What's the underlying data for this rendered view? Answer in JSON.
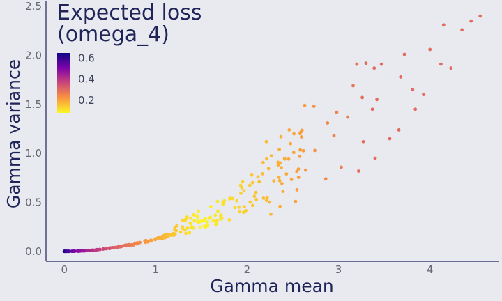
{
  "chart_data": {
    "type": "scatter",
    "title_lines": [
      "Expected loss",
      "(omega_4)"
    ],
    "xlabel": "Gamma mean",
    "ylabel": "Gamma variance",
    "xlim": [
      -0.2,
      4.75
    ],
    "ylim": [
      -0.1,
      2.55
    ],
    "x_ticks": [
      0,
      1,
      2,
      3,
      4
    ],
    "y_ticks": [
      0.0,
      0.5,
      1.0,
      1.5,
      2.0,
      2.5
    ],
    "x_tick_labels": [
      "0",
      "1",
      "2",
      "3",
      "4"
    ],
    "y_tick_labels": [
      "0.0",
      "0.5",
      "1.0",
      "1.5",
      "2.0",
      "2.5"
    ],
    "grid": false,
    "color_scale": {
      "name": "plasma",
      "min": 0.08,
      "max": 0.65,
      "legend_ticks": [
        0.6,
        0.4,
        0.2
      ],
      "legend_tick_labels": [
        "0.6",
        "0.4",
        "0.2"
      ],
      "legend_placement": "top-left",
      "colors": [
        "#fcf524",
        "#f89540",
        "#cc4778",
        "#7e03a8",
        "#0d0887"
      ]
    },
    "curve_relation": "variance ≈ 0.12·mean²",
    "points_outliers": [
      {
        "x": 4.55,
        "y": 2.4
      },
      {
        "x": 4.45,
        "y": 2.35
      },
      {
        "x": 4.35,
        "y": 2.26
      },
      {
        "x": 4.15,
        "y": 2.31
      },
      {
        "x": 4.23,
        "y": 1.87
      },
      {
        "x": 4.12,
        "y": 1.91
      },
      {
        "x": 4.0,
        "y": 2.06
      },
      {
        "x": 3.72,
        "y": 2.01
      },
      {
        "x": 3.68,
        "y": 1.78
      },
      {
        "x": 3.81,
        "y": 1.65
      },
      {
        "x": 3.93,
        "y": 1.6
      },
      {
        "x": 3.84,
        "y": 1.45
      },
      {
        "x": 3.66,
        "y": 1.24
      },
      {
        "x": 3.56,
        "y": 1.15
      },
      {
        "x": 3.47,
        "y": 1.91
      },
      {
        "x": 3.39,
        "y": 1.87
      },
      {
        "x": 3.3,
        "y": 1.92
      },
      {
        "x": 3.2,
        "y": 1.91
      },
      {
        "x": 3.26,
        "y": 1.57
      },
      {
        "x": 3.42,
        "y": 1.55
      },
      {
        "x": 3.16,
        "y": 1.69
      },
      {
        "x": 3.37,
        "y": 1.45
      },
      {
        "x": 3.1,
        "y": 1.37
      },
      {
        "x": 3.27,
        "y": 1.12
      },
      {
        "x": 3.22,
        "y": 0.82
      },
      {
        "x": 3.4,
        "y": 0.95
      },
      {
        "x": 2.98,
        "y": 1.42
      },
      {
        "x": 2.88,
        "y": 1.31
      },
      {
        "x": 2.73,
        "y": 1.48
      },
      {
        "x": 2.63,
        "y": 1.49
      },
      {
        "x": 2.59,
        "y": 1.22
      },
      {
        "x": 2.46,
        "y": 1.24
      },
      {
        "x": 2.37,
        "y": 1.17
      },
      {
        "x": 2.21,
        "y": 1.12
      },
      {
        "x": 2.51,
        "y": 1.01
      },
      {
        "x": 2.74,
        "y": 1.03
      },
      {
        "x": 2.95,
        "y": 1.18
      },
      {
        "x": 3.03,
        "y": 0.86
      },
      {
        "x": 2.64,
        "y": 0.83
      },
      {
        "x": 2.43,
        "y": 0.79
      },
      {
        "x": 2.86,
        "y": 0.74
      },
      {
        "x": 2.53,
        "y": 0.51
      },
      {
        "x": 2.36,
        "y": 0.46
      },
      {
        "x": 2.26,
        "y": 0.38
      },
      {
        "x": 2.1,
        "y": 0.53
      },
      {
        "x": 1.91,
        "y": 0.45
      },
      {
        "x": 1.63,
        "y": 0.31
      }
    ]
  }
}
